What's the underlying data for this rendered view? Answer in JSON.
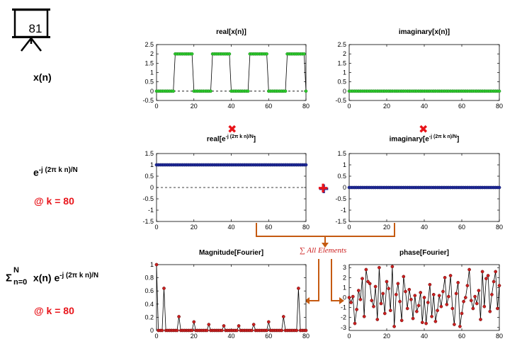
{
  "slide": {
    "number": "81"
  },
  "row_labels": {
    "xn": "x(n)",
    "kernel_base": "e",
    "kernel_exp": "-j (2π k n)/N",
    "at_k": "@ k = 80",
    "sum_sigma": "Σ",
    "sum_upper": "N",
    "sum_lower": "n=0",
    "sum_body": " x(n) e",
    "sum_exp": "-j (2π k n)/N",
    "sum_at_k": "@ k = 80"
  },
  "operators": {
    "multiply": "✖",
    "add": "✚",
    "sum_all": "∑ All Elements"
  },
  "colors": {
    "green_marker": "#2dcc2d",
    "blue_marker": "#1f2a9a",
    "red_marker": "#cc1f1f",
    "accent_red": "#e8141a",
    "arrow_orange": "#c55a11"
  },
  "titles": {
    "real_x": "real[x(n)]",
    "imag_x": "imaginary[x(n)]",
    "real_e_pre": "real[e",
    "real_e_sup": "-j (2π k n)/N",
    "real_e_post": "]",
    "imag_e_pre": "imaginary[e",
    "imag_e_sup": "-j (2π k n)/N",
    "imag_e_post": "]",
    "mag": "Magnitude[Fourier]",
    "phase": "phase[Fourier]"
  },
  "chart_data": [
    {
      "id": "real_x",
      "type": "line",
      "marker": "green",
      "zero_dashed": true,
      "xlim": [
        0,
        80
      ],
      "ylim": [
        -0.5,
        2.5
      ],
      "yticks": [
        -0.5,
        0,
        0.5,
        1,
        1.5,
        2,
        2.5
      ],
      "yticklabels": [
        "-0.5",
        "0",
        "0.5",
        "1",
        "1.5",
        "2",
        "2.5"
      ],
      "xticks": [
        0,
        20,
        40,
        60,
        80
      ],
      "xticklabels": [
        "0",
        "20",
        "40",
        "60",
        "80"
      ],
      "pattern": {
        "type": "square",
        "period": 20,
        "high_len": 10,
        "high": 2,
        "low": 0,
        "n": 80
      }
    },
    {
      "id": "imag_x",
      "type": "line",
      "marker": "green",
      "zero_dashed": true,
      "xlim": [
        0,
        80
      ],
      "ylim": [
        -0.5,
        2.5
      ],
      "yticks": [
        -0.5,
        0,
        0.5,
        1,
        1.5,
        2,
        2.5
      ],
      "yticklabels": [
        "-0.5",
        "0",
        "0.5",
        "1",
        "1.5",
        "2",
        "2.5"
      ],
      "xticks": [
        0,
        20,
        40,
        60,
        80
      ],
      "xticklabels": [
        "0",
        "20",
        "40",
        "60",
        "80"
      ],
      "pattern": {
        "type": "constant",
        "value": 0,
        "n": 80
      }
    },
    {
      "id": "real_e",
      "type": "line",
      "marker": "blue",
      "zero_dashed": true,
      "xlim": [
        0,
        80
      ],
      "ylim": [
        -1.5,
        1.5
      ],
      "yticks": [
        -1.5,
        -1,
        -0.5,
        0,
        0.5,
        1,
        1.5
      ],
      "yticklabels": [
        "-1.5",
        "-1",
        "-0.5",
        "0",
        "0.5",
        "1",
        "1.5"
      ],
      "xticks": [
        0,
        20,
        40,
        60,
        80
      ],
      "xticklabels": [
        "0",
        "20",
        "40",
        "60",
        "80"
      ],
      "pattern": {
        "type": "constant",
        "value": 1,
        "n": 80
      }
    },
    {
      "id": "imag_e",
      "type": "line",
      "marker": "blue",
      "zero_dashed": true,
      "xlim": [
        0,
        80
      ],
      "ylim": [
        -1.5,
        1.5
      ],
      "yticks": [
        -1.5,
        -1,
        -0.5,
        0,
        0.5,
        1,
        1.5
      ],
      "yticklabels": [
        "-1.5",
        "-1",
        "-0.5",
        "0",
        "0.5",
        "1",
        "1.5"
      ],
      "xticks": [
        0,
        20,
        40,
        60,
        80
      ],
      "xticklabels": [
        "0",
        "20",
        "40",
        "60",
        "80"
      ],
      "pattern": {
        "type": "constant",
        "value": 0,
        "n": 80
      }
    },
    {
      "id": "mag",
      "type": "line",
      "marker": "red",
      "zero_dashed": false,
      "xlim": [
        0,
        80
      ],
      "ylim": [
        0,
        1
      ],
      "yticks": [
        0,
        0.2,
        0.4,
        0.6,
        0.8,
        1
      ],
      "yticklabels": [
        "0",
        "0.2",
        "0.4",
        "0.6",
        "0.8",
        "1"
      ],
      "xticks": [
        0,
        20,
        40,
        60,
        80
      ],
      "xticklabels": [
        "0",
        "20",
        "40",
        "60",
        "80"
      ],
      "pattern": {
        "type": "sparse",
        "n": 80,
        "base": 0,
        "points": [
          [
            0,
            1
          ],
          [
            4,
            0.64
          ],
          [
            12,
            0.21
          ],
          [
            20,
            0.13
          ],
          [
            28,
            0.09
          ],
          [
            36,
            0.07
          ],
          [
            44,
            0.07
          ],
          [
            52,
            0.09
          ],
          [
            60,
            0.13
          ],
          [
            68,
            0.21
          ],
          [
            76,
            0.64
          ]
        ]
      }
    },
    {
      "id": "phase",
      "type": "line",
      "marker": "red",
      "zero_dashed": false,
      "xlim": [
        0,
        80
      ],
      "ylim": [
        -3.3,
        3.3
      ],
      "yticks": [
        -3,
        -2,
        -1,
        0,
        1,
        2,
        3
      ],
      "yticklabels": [
        "-3",
        "-2",
        "-1",
        "0",
        "1",
        "2",
        "3"
      ],
      "xticks": [
        0,
        20,
        40,
        60,
        80
      ],
      "xticklabels": [
        "0",
        "20",
        "40",
        "60",
        "80"
      ],
      "values": [
        0,
        -0.5,
        0.1,
        -2.6,
        -1.2,
        0.7,
        -0.2,
        1.9,
        -1.9,
        2.8,
        1.6,
        1.4,
        -0.3,
        -0.9,
        1.1,
        -2.2,
        3.0,
        -0.6,
        0.4,
        -1.6,
        1.6,
        0.9,
        -1.3,
        3.1,
        -2.9,
        0.3,
        1.4,
        -0.4,
        -2.3,
        2.1,
        0.6,
        -1.1,
        0.8,
        -0.2,
        -2.1,
        0.2,
        -1.4,
        -0.8,
        0.5,
        -2.5,
        0.0,
        -2.6,
        -0.5,
        1.3,
        -1.9,
        0.3,
        -2.4,
        -1.3,
        0.2,
        -0.9,
        0.6,
        2.0,
        -0.7,
        0.1,
        2.2,
        -1.1,
        -2.7,
        0.4,
        1.5,
        -2.9,
        -1.6,
        -0.4,
        0.0,
        1.2,
        2.8,
        -0.3,
        -1.1,
        0.1,
        -0.6,
        0.7,
        -2.2,
        2.6,
        -0.9,
        1.9,
        2.2,
        -1.4,
        0.3,
        1.6,
        2.6,
        -1.1,
        1.2
      ]
    }
  ]
}
